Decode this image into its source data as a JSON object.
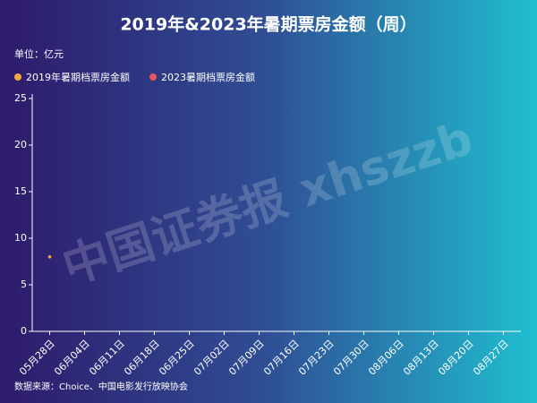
{
  "chart_data": {
    "type": "line",
    "title": "2019年&2023年暑期票房金额（周）",
    "unit_label": "单位：亿元",
    "source": "数据来源：Choice、中国电影发行放映协会",
    "watermark": "中国证券报 xhszzb",
    "categories": [
      "05月28日",
      "06月04日",
      "06月11日",
      "06月18日",
      "06月25日",
      "07月02日",
      "07月09日",
      "07月16日",
      "07月23日",
      "07月30日",
      "08月06日",
      "08月13日",
      "08月20日",
      "08月27日"
    ],
    "series": [
      {
        "name": "2019年暑期档票房金额",
        "color": "#f5a742",
        "values": [
          8,
          null,
          null,
          null,
          null,
          null,
          null,
          null,
          null,
          null,
          null,
          null,
          null,
          null
        ]
      },
      {
        "name": "2023暑期档票房金额",
        "color": "#e8575a",
        "values": [
          null,
          null,
          null,
          null,
          null,
          null,
          null,
          null,
          null,
          null,
          null,
          null,
          null,
          null
        ]
      }
    ],
    "ylim": [
      0,
      25
    ],
    "yticks": [
      0,
      5,
      10,
      15,
      20,
      25
    ]
  }
}
